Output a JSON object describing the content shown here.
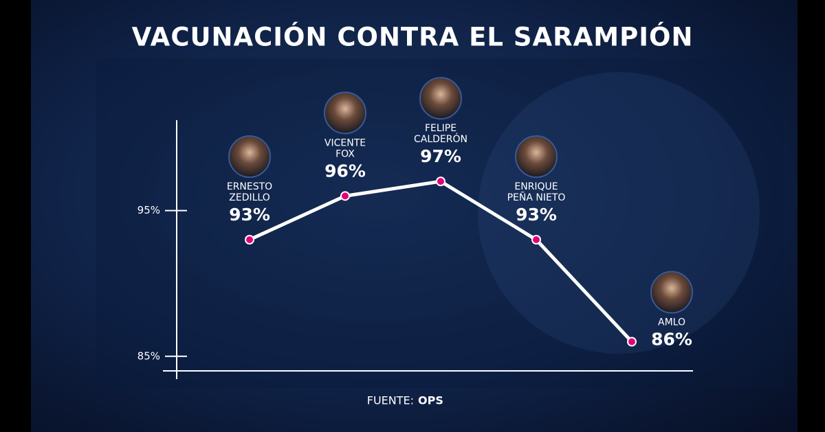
{
  "chart_data": {
    "type": "line",
    "title": "VACUNACIÓN CONTRA EL SARAMPIÓN",
    "categories": [
      [
        "ERNESTO",
        "ZEDILLO"
      ],
      [
        "VICENTE",
        "FOX"
      ],
      [
        "FELIPE",
        "CALDERÓN"
      ],
      [
        "ENRIQUE",
        "PEÑA NIETO"
      ],
      [
        "AMLO"
      ]
    ],
    "values": [
      93,
      96,
      97,
      93,
      86
    ],
    "value_labels": [
      "93%",
      "96%",
      "97%",
      "93%",
      "86%"
    ],
    "color": "#ffffff",
    "marker_color": "#e0007a",
    "ylim": [
      84,
      101.2
    ],
    "yticks": [
      {
        "value": 85,
        "label": "85%"
      },
      {
        "value": 95,
        "label": "95%"
      }
    ],
    "source": {
      "label": "FUENTE:",
      "name": "OPS"
    }
  }
}
